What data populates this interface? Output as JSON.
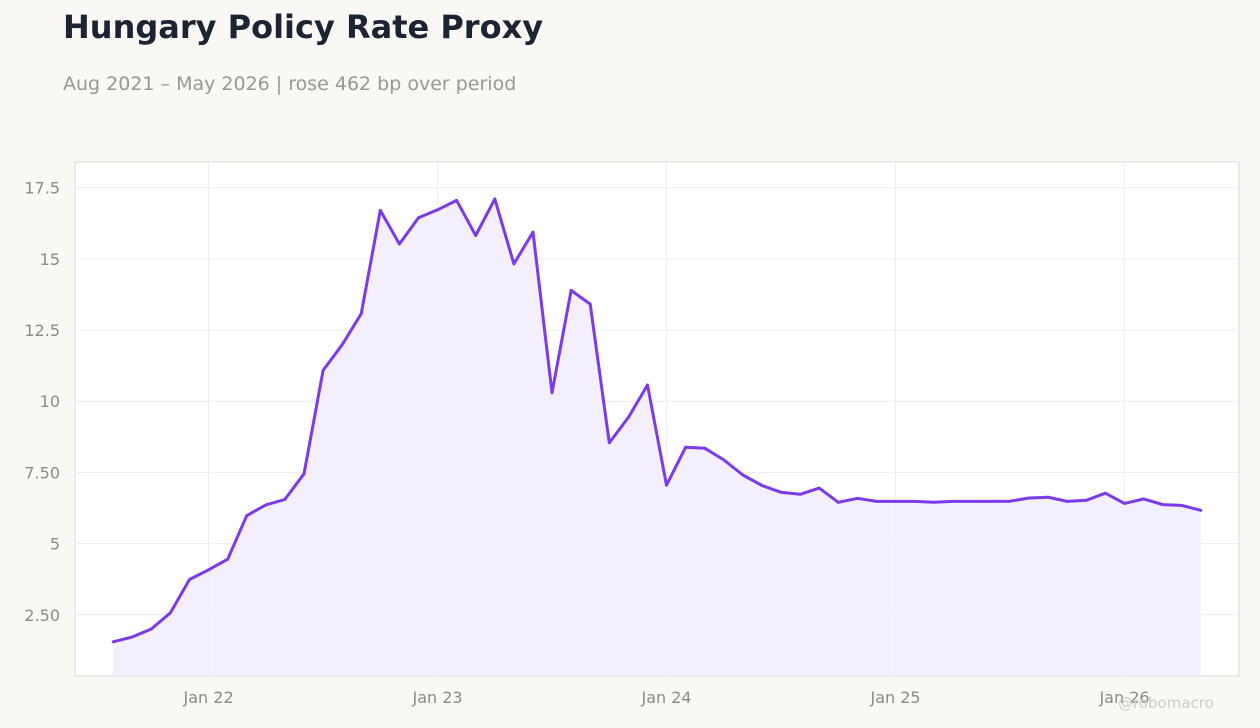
{
  "title": "Hungary Policy Rate Proxy",
  "subtitle": "Aug 2021 – May 2026 | rose 462 bp over period",
  "watermark": "@robomacro",
  "colors": {
    "line": "#7c3aed",
    "fill": "#f2ecfc",
    "background": "#f9f8f5",
    "plot_background": "#ffffff",
    "grid": "#efedf0"
  },
  "chart_data": {
    "type": "area",
    "title": "Hungary Policy Rate Proxy",
    "subtitle": "Aug 2021 – May 2026 | rose 462 bp over period",
    "xlabel": "",
    "ylabel": "",
    "x": [
      "2021-08",
      "2021-09",
      "2021-10",
      "2021-11",
      "2021-12",
      "2022-01",
      "2022-02",
      "2022-03",
      "2022-04",
      "2022-05",
      "2022-06",
      "2022-07",
      "2022-08",
      "2022-09",
      "2022-10",
      "2022-11",
      "2022-12",
      "2023-01",
      "2023-02",
      "2023-03",
      "2023-04",
      "2023-05",
      "2023-06",
      "2023-07",
      "2023-08",
      "2023-09",
      "2023-10",
      "2023-11",
      "2023-12",
      "2024-01",
      "2024-02",
      "2024-03",
      "2024-04",
      "2024-05",
      "2024-06",
      "2024-07",
      "2024-08",
      "2024-09",
      "2024-10",
      "2024-11",
      "2024-12",
      "2025-01",
      "2025-02",
      "2025-03",
      "2025-04",
      "2025-05",
      "2025-06",
      "2025-07",
      "2025-08",
      "2025-09",
      "2025-10",
      "2025-11",
      "2025-12",
      "2026-01",
      "2026-02",
      "2026-03",
      "2026-04",
      "2026-05"
    ],
    "values": [
      1.55,
      1.72,
      2.0,
      2.57,
      3.74,
      4.08,
      4.45,
      5.98,
      6.36,
      6.55,
      7.45,
      11.08,
      11.98,
      13.07,
      16.7,
      15.52,
      16.44,
      16.72,
      17.05,
      15.82,
      17.1,
      14.82,
      15.94,
      10.3,
      13.89,
      13.41,
      8.54,
      9.43,
      10.57,
      7.05,
      8.38,
      8.35,
      7.94,
      7.41,
      7.04,
      6.8,
      6.73,
      6.95,
      6.45,
      6.59,
      6.48,
      6.48,
      6.48,
      6.45,
      6.48,
      6.48,
      6.48,
      6.49,
      6.6,
      6.63,
      6.48,
      6.52,
      6.77,
      6.41,
      6.57,
      6.37,
      6.34,
      6.17
    ],
    "x_ticks": [
      {
        "date": "2022-01",
        "label": "Jan 22"
      },
      {
        "date": "2023-01",
        "label": "Jan 23"
      },
      {
        "date": "2024-01",
        "label": "Jan 24"
      },
      {
        "date": "2025-01",
        "label": "Jan 25"
      },
      {
        "date": "2026-01",
        "label": "Jan 26"
      }
    ],
    "y_ticks": [
      {
        "value": 2.5,
        "label": "2.50"
      },
      {
        "value": 5,
        "label": "5"
      },
      {
        "value": 7.5,
        "label": "7.50"
      },
      {
        "value": 10,
        "label": "10"
      },
      {
        "value": 12.5,
        "label": "12.5"
      },
      {
        "value": 15,
        "label": "15"
      },
      {
        "value": 17.5,
        "label": "17.5"
      }
    ],
    "xlim": [
      "2021-06",
      "2026-07"
    ],
    "ylim": [
      0.35,
      18.4
    ],
    "grid": true,
    "legend": "none"
  }
}
